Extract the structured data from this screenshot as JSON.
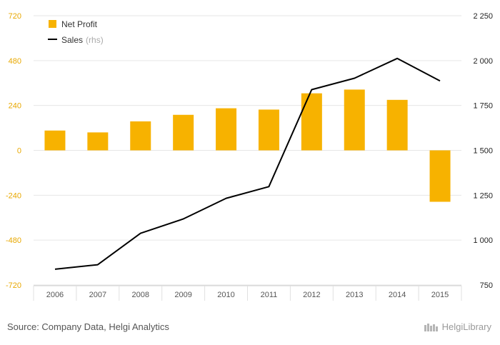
{
  "chart_data": {
    "type": "bar",
    "categories": [
      "2006",
      "2007",
      "2008",
      "2009",
      "2010",
      "2011",
      "2012",
      "2013",
      "2014",
      "2015"
    ],
    "series": [
      {
        "name": "Net Profit",
        "type": "bar",
        "axis": "left",
        "color": "#f7b200",
        "values": [
          106,
          96,
          155,
          190,
          225,
          218,
          305,
          325,
          270,
          275
        ]
      },
      {
        "name": "Sales",
        "name_suffix": "(rhs)",
        "type": "line",
        "axis": "right",
        "color": "#000000",
        "values": [
          838,
          863,
          1038,
          1118,
          1233,
          1298,
          1838,
          1902,
          2012,
          1887
        ]
      }
    ],
    "series_signs": [
      1,
      1,
      1,
      1,
      1,
      1,
      1,
      1,
      1,
      -1
    ],
    "y_left": {
      "ylim": [
        -720,
        720
      ],
      "ticks": [
        "720",
        "480",
        "240",
        "0",
        "-240",
        "-480",
        "-720"
      ],
      "tick_values": [
        720,
        480,
        240,
        0,
        -240,
        -480,
        -720
      ],
      "color": "#e8a800"
    },
    "y_right": {
      "ylim": [
        750,
        2250
      ],
      "ticks": [
        "2 250",
        "2 000",
        "1 750",
        "1 500",
        "1 250",
        "1 000",
        "750"
      ],
      "tick_values": [
        2250,
        2000,
        1750,
        1500,
        1250,
        1000,
        750
      ]
    },
    "grid": true,
    "legend_position": "top-left"
  },
  "footer": {
    "source": "Source: Company Data, Helgi Analytics",
    "logo_text": "HelgiLibrary"
  }
}
